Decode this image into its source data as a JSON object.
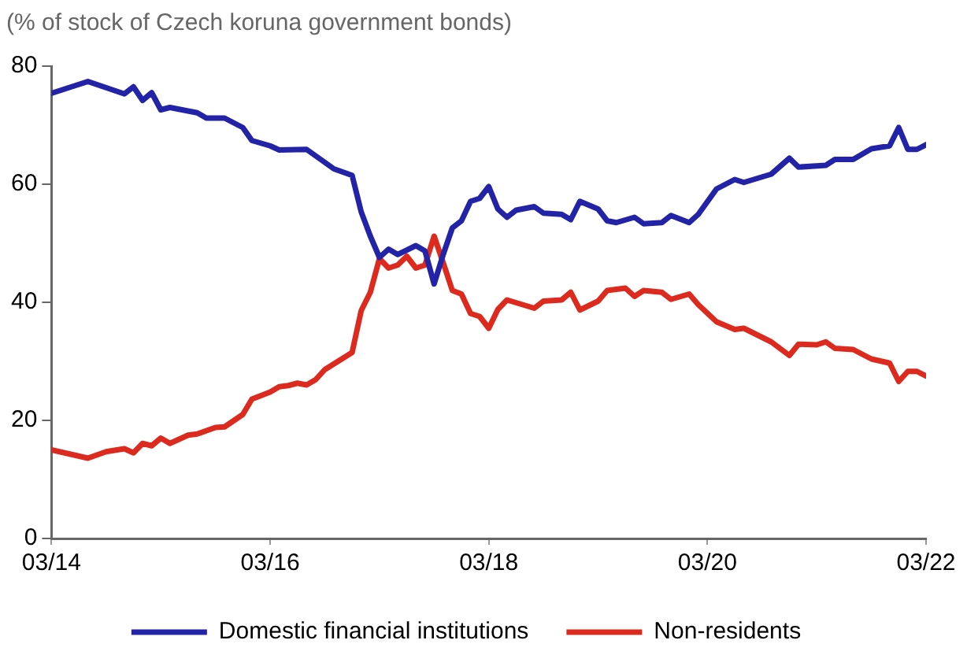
{
  "chart_data": {
    "type": "line",
    "subtitle": "(% of stock of Czech koruna government bonds)",
    "xlim": [
      "2014-03",
      "2022-03"
    ],
    "xticks": [
      {
        "value": "2014-03",
        "label": "03/14"
      },
      {
        "value": "2016-03",
        "label": "03/16"
      },
      {
        "value": "2018-03",
        "label": "03/18"
      },
      {
        "value": "2020-03",
        "label": "03/20"
      },
      {
        "value": "2022-03",
        "label": "03/22"
      }
    ],
    "ylim": [
      0,
      80
    ],
    "yticks": [
      0,
      20,
      40,
      60,
      80
    ],
    "grid": false,
    "legend": "bottom",
    "marker": "none",
    "line_style": "solid",
    "series": [
      {
        "name": "Domestic financial institutions",
        "color": "#2323a8",
        "x": [
          "2014-03",
          "2014-07",
          "2014-11",
          "2014-12",
          "2015-01",
          "2015-02",
          "2015-03",
          "2015-04",
          "2015-07",
          "2015-08",
          "2015-10",
          "2015-12",
          "2016-01",
          "2016-03",
          "2016-04",
          "2016-07",
          "2016-08",
          "2016-10",
          "2016-12",
          "2017-01",
          "2017-02",
          "2017-03",
          "2017-04",
          "2017-05",
          "2017-07",
          "2017-08",
          "2017-09",
          "2017-10",
          "2017-11",
          "2017-12",
          "2018-01",
          "2018-02",
          "2018-03",
          "2018-04",
          "2018-05",
          "2018-06",
          "2018-08",
          "2018-09",
          "2018-11",
          "2018-12",
          "2019-01",
          "2019-03",
          "2019-04",
          "2019-05",
          "2019-07",
          "2019-08",
          "2019-10",
          "2019-11",
          "2020-01",
          "2020-02",
          "2020-04",
          "2020-06",
          "2020-07",
          "2020-10",
          "2020-12",
          "2021-01",
          "2021-04",
          "2021-05",
          "2021-07",
          "2021-09",
          "2021-11",
          "2021-12",
          "2022-01",
          "2022-02",
          "2022-03"
        ],
        "values": [
          75.4,
          77.4,
          75.3,
          76.5,
          74.2,
          75.5,
          72.6,
          73.0,
          72.1,
          71.2,
          71.2,
          69.6,
          67.4,
          66.5,
          65.8,
          65.9,
          64.8,
          62.6,
          61.5,
          55.3,
          51.2,
          47.6,
          49.0,
          48.1,
          49.6,
          48.7,
          43.1,
          48.1,
          52.6,
          53.8,
          57.1,
          57.6,
          59.6,
          55.8,
          54.4,
          55.6,
          56.2,
          55.1,
          54.9,
          54.0,
          57.1,
          55.8,
          53.8,
          53.5,
          54.4,
          53.3,
          53.5,
          54.7,
          53.5,
          54.9,
          59.2,
          60.8,
          60.3,
          61.7,
          64.4,
          62.9,
          63.2,
          64.2,
          64.2,
          66.0,
          66.5,
          69.6,
          65.9,
          65.9,
          66.7
        ]
      },
      {
        "name": "Non-residents",
        "color": "#dc2a1e",
        "x": [
          "2014-03",
          "2014-05",
          "2014-07",
          "2014-09",
          "2014-11",
          "2014-12",
          "2015-01",
          "2015-02",
          "2015-03",
          "2015-04",
          "2015-06",
          "2015-07",
          "2015-09",
          "2015-10",
          "2015-12",
          "2016-01",
          "2016-03",
          "2016-04",
          "2016-05",
          "2016-06",
          "2016-07",
          "2016-08",
          "2016-09",
          "2016-12",
          "2017-01",
          "2017-02",
          "2017-03",
          "2017-04",
          "2017-05",
          "2017-06",
          "2017-07",
          "2017-08",
          "2017-09",
          "2017-10",
          "2017-11",
          "2017-12",
          "2018-01",
          "2018-02",
          "2018-03",
          "2018-04",
          "2018-05",
          "2018-08",
          "2018-09",
          "2018-11",
          "2018-12",
          "2019-01",
          "2019-03",
          "2019-04",
          "2019-06",
          "2019-07",
          "2019-08",
          "2019-10",
          "2019-11",
          "2020-01",
          "2020-02",
          "2020-04",
          "2020-06",
          "2020-07",
          "2020-10",
          "2020-12",
          "2021-01",
          "2021-03",
          "2021-04",
          "2021-05",
          "2021-07",
          "2021-09",
          "2021-11",
          "2021-12",
          "2022-01",
          "2022-02",
          "2022-03"
        ],
        "values": [
          15.0,
          14.3,
          13.6,
          14.7,
          15.2,
          14.5,
          16.1,
          15.7,
          17.0,
          16.1,
          17.5,
          17.7,
          18.8,
          18.9,
          21.0,
          23.6,
          24.8,
          25.7,
          25.9,
          26.3,
          26.0,
          26.9,
          28.6,
          31.5,
          38.6,
          41.7,
          47.4,
          45.8,
          46.3,
          47.8,
          45.8,
          46.3,
          51.2,
          46.7,
          42.0,
          41.4,
          38.1,
          37.6,
          35.6,
          38.8,
          40.4,
          39.0,
          40.2,
          40.4,
          41.7,
          38.7,
          40.2,
          42.0,
          42.4,
          41.0,
          42.0,
          41.7,
          40.5,
          41.4,
          39.6,
          36.7,
          35.4,
          35.6,
          33.3,
          31.0,
          32.9,
          32.8,
          33.3,
          32.2,
          32.0,
          30.4,
          29.7,
          26.6,
          28.3,
          28.3,
          27.5
        ]
      }
    ]
  }
}
